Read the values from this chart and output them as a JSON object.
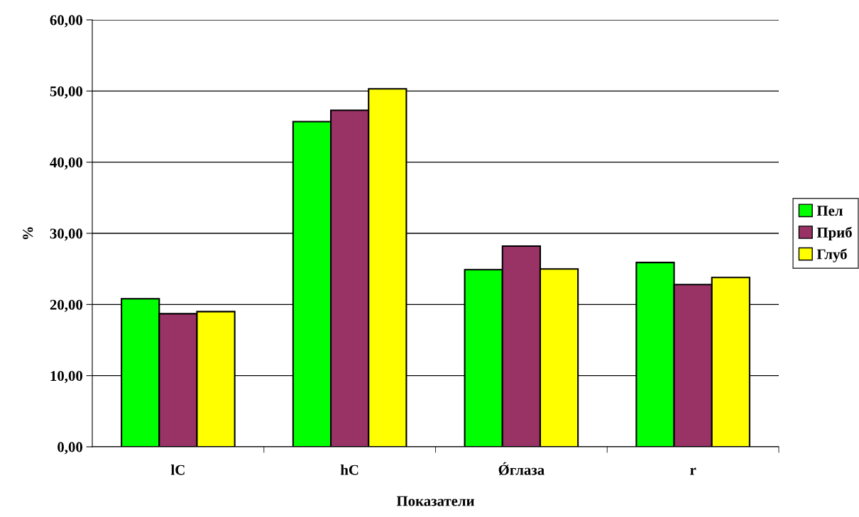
{
  "chart_data": {
    "type": "bar",
    "xlabel": "Показатели",
    "ylabel": "%",
    "categories": [
      "lC",
      "hC",
      "Ǿглаза",
      "r"
    ],
    "series": [
      {
        "name": "Пел",
        "color": "#00ff00",
        "values": [
          20.8,
          45.7,
          24.9,
          25.9
        ]
      },
      {
        "name": "Приб",
        "color": "#993366",
        "values": [
          18.7,
          47.3,
          28.2,
          22.8
        ]
      },
      {
        "name": "Глуб",
        "color": "#ffff00",
        "values": [
          19.0,
          50.3,
          25.0,
          23.8
        ]
      }
    ],
    "ylim": [
      0,
      60
    ],
    "yticks": [
      {
        "value": 0,
        "label": "0,00"
      },
      {
        "value": 10,
        "label": "10,00"
      },
      {
        "value": 20,
        "label": "20,00"
      },
      {
        "value": 30,
        "label": "30,00"
      },
      {
        "value": 40,
        "label": "40,00"
      },
      {
        "value": 50,
        "label": "50,00"
      },
      {
        "value": 60,
        "label": "60,00"
      }
    ],
    "grid": "y",
    "legend": "right"
  }
}
